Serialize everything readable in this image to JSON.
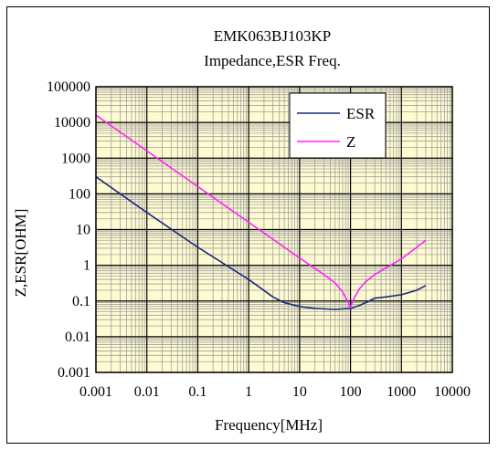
{
  "chart_data": {
    "type": "line",
    "title": "EMK063BJ103KP",
    "subtitle": "Impedance,ESR Freq.",
    "xlabel": "Frequency[MHz]",
    "ylabel": "Z,ESR[OHM]",
    "x_scale": "log",
    "y_scale": "log",
    "xlim": [
      0.001,
      10000
    ],
    "ylim": [
      0.001,
      100000
    ],
    "x_ticks": [
      "0.001",
      "0.01",
      "0.1",
      "1",
      "10",
      "100",
      "1000",
      "10000"
    ],
    "y_ticks": [
      "0.001",
      "0.01",
      "0.1",
      "1",
      "10",
      "100",
      "1000",
      "10000",
      "100000"
    ],
    "grid": true,
    "plot_background": "#fffbd0",
    "grid_color": "#a0a0a0",
    "legend_position": "top-right",
    "series": [
      {
        "name": "ESR",
        "color": "#1a2a7a",
        "x": [
          0.001,
          0.01,
          0.1,
          1,
          3,
          5,
          10,
          20,
          50,
          100,
          150,
          200,
          300,
          500,
          1000,
          2000,
          3000
        ],
        "y": [
          300,
          30,
          3.2,
          0.4,
          0.13,
          0.09,
          0.07,
          0.062,
          0.058,
          0.062,
          0.075,
          0.09,
          0.12,
          0.13,
          0.15,
          0.2,
          0.27
        ]
      },
      {
        "name": "Z",
        "color": "#ff22ff",
        "x": [
          0.001,
          0.01,
          0.1,
          1,
          10,
          30,
          50,
          70,
          90,
          100,
          110,
          150,
          200,
          300,
          500,
          1000,
          2000,
          3000
        ],
        "y": [
          16000,
          1600,
          160,
          16,
          1.6,
          0.55,
          0.32,
          0.18,
          0.09,
          0.065,
          0.1,
          0.22,
          0.35,
          0.55,
          0.85,
          1.5,
          3.2,
          5
        ]
      }
    ]
  }
}
